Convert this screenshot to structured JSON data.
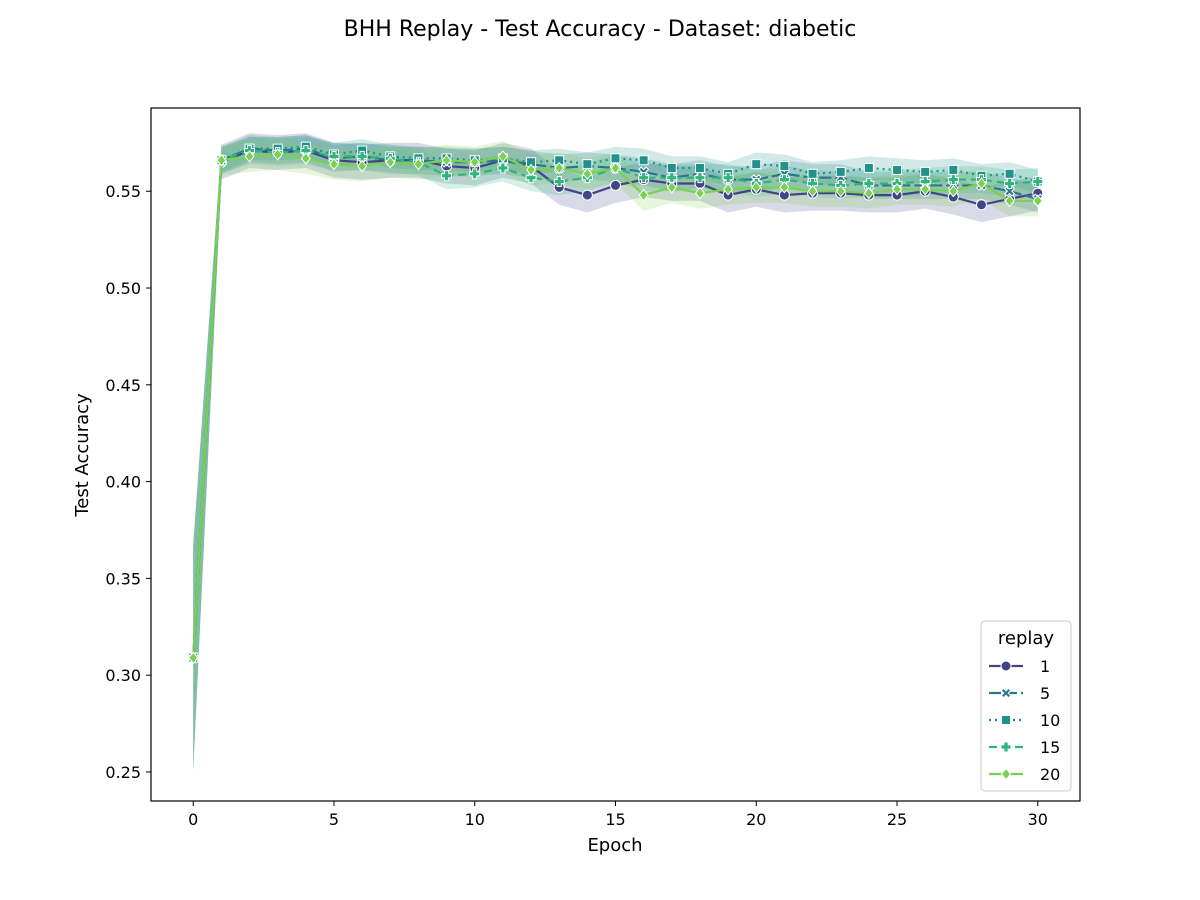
{
  "chart_data": {
    "type": "line",
    "title": "BHH Replay - Test Accuracy - Dataset: diabetic",
    "xlabel": "Epoch",
    "ylabel": "Test Accuracy",
    "xlim": [
      -1.5,
      31.5
    ],
    "ylim": [
      0.235,
      0.593
    ],
    "xticks": [
      0,
      5,
      10,
      15,
      20,
      25,
      30
    ],
    "yticks": [
      0.25,
      0.3,
      0.35,
      0.4,
      0.45,
      0.5,
      0.55
    ],
    "ytick_labels": [
      "0.25",
      "0.30",
      "0.35",
      "0.40",
      "0.45",
      "0.50",
      "0.55"
    ],
    "grid": false,
    "legend": {
      "title": "replay",
      "placement": "lower-right"
    },
    "x": [
      0,
      1,
      2,
      3,
      4,
      5,
      6,
      7,
      8,
      9,
      10,
      11,
      12,
      13,
      14,
      15,
      16,
      17,
      18,
      19,
      20,
      21,
      22,
      23,
      24,
      25,
      26,
      27,
      28,
      29,
      30
    ],
    "series": [
      {
        "name": "1",
        "color": "#414487",
        "dash": "",
        "marker": "circle",
        "values": [
          0.309,
          0.565,
          0.571,
          0.57,
          0.571,
          0.566,
          0.565,
          0.566,
          0.566,
          0.563,
          0.562,
          0.566,
          0.563,
          0.552,
          0.548,
          0.553,
          0.556,
          0.554,
          0.554,
          0.548,
          0.551,
          0.548,
          0.549,
          0.549,
          0.548,
          0.548,
          0.55,
          0.547,
          0.543,
          0.546,
          0.549
        ],
        "band": 0.009
      },
      {
        "name": "5",
        "color": "#2a788e",
        "dash": "12,4",
        "marker": "x",
        "values": [
          0.309,
          0.566,
          0.572,
          0.571,
          0.572,
          0.567,
          0.568,
          0.566,
          0.566,
          0.565,
          0.565,
          0.566,
          0.564,
          0.562,
          0.563,
          0.562,
          0.56,
          0.557,
          0.559,
          0.556,
          0.556,
          0.559,
          0.557,
          0.557,
          0.553,
          0.553,
          0.553,
          0.553,
          0.553,
          0.55,
          0.546
        ],
        "band": 0.007
      },
      {
        "name": "10",
        "color": "#21918c",
        "dash": "2,4",
        "marker": "square",
        "values": [
          0.309,
          0.566,
          0.572,
          0.572,
          0.573,
          0.569,
          0.571,
          0.568,
          0.567,
          0.567,
          0.566,
          0.567,
          0.565,
          0.566,
          0.564,
          0.567,
          0.566,
          0.562,
          0.562,
          0.559,
          0.564,
          0.563,
          0.559,
          0.56,
          0.562,
          0.561,
          0.56,
          0.561,
          0.558,
          0.559,
          0.555
        ],
        "band": 0.006
      },
      {
        "name": "15",
        "color": "#2fb47c",
        "dash": "8,5",
        "marker": "plus",
        "values": [
          0.309,
          0.566,
          0.571,
          0.57,
          0.571,
          0.568,
          0.568,
          0.567,
          0.565,
          0.558,
          0.559,
          0.562,
          0.557,
          0.555,
          0.557,
          0.562,
          0.557,
          0.557,
          0.557,
          0.557,
          0.554,
          0.556,
          0.554,
          0.553,
          0.554,
          0.554,
          0.555,
          0.556,
          0.556,
          0.554,
          0.555
        ],
        "band": 0.007
      },
      {
        "name": "20",
        "color": "#7ad151",
        "dash": "",
        "marker": "diamond",
        "values": [
          0.309,
          0.566,
          0.568,
          0.569,
          0.567,
          0.564,
          0.563,
          0.565,
          0.564,
          0.566,
          0.565,
          0.568,
          0.561,
          0.562,
          0.559,
          0.562,
          0.548,
          0.552,
          0.549,
          0.551,
          0.552,
          0.552,
          0.55,
          0.55,
          0.549,
          0.551,
          0.551,
          0.55,
          0.554,
          0.545,
          0.545
        ],
        "band": 0.008
      }
    ]
  }
}
